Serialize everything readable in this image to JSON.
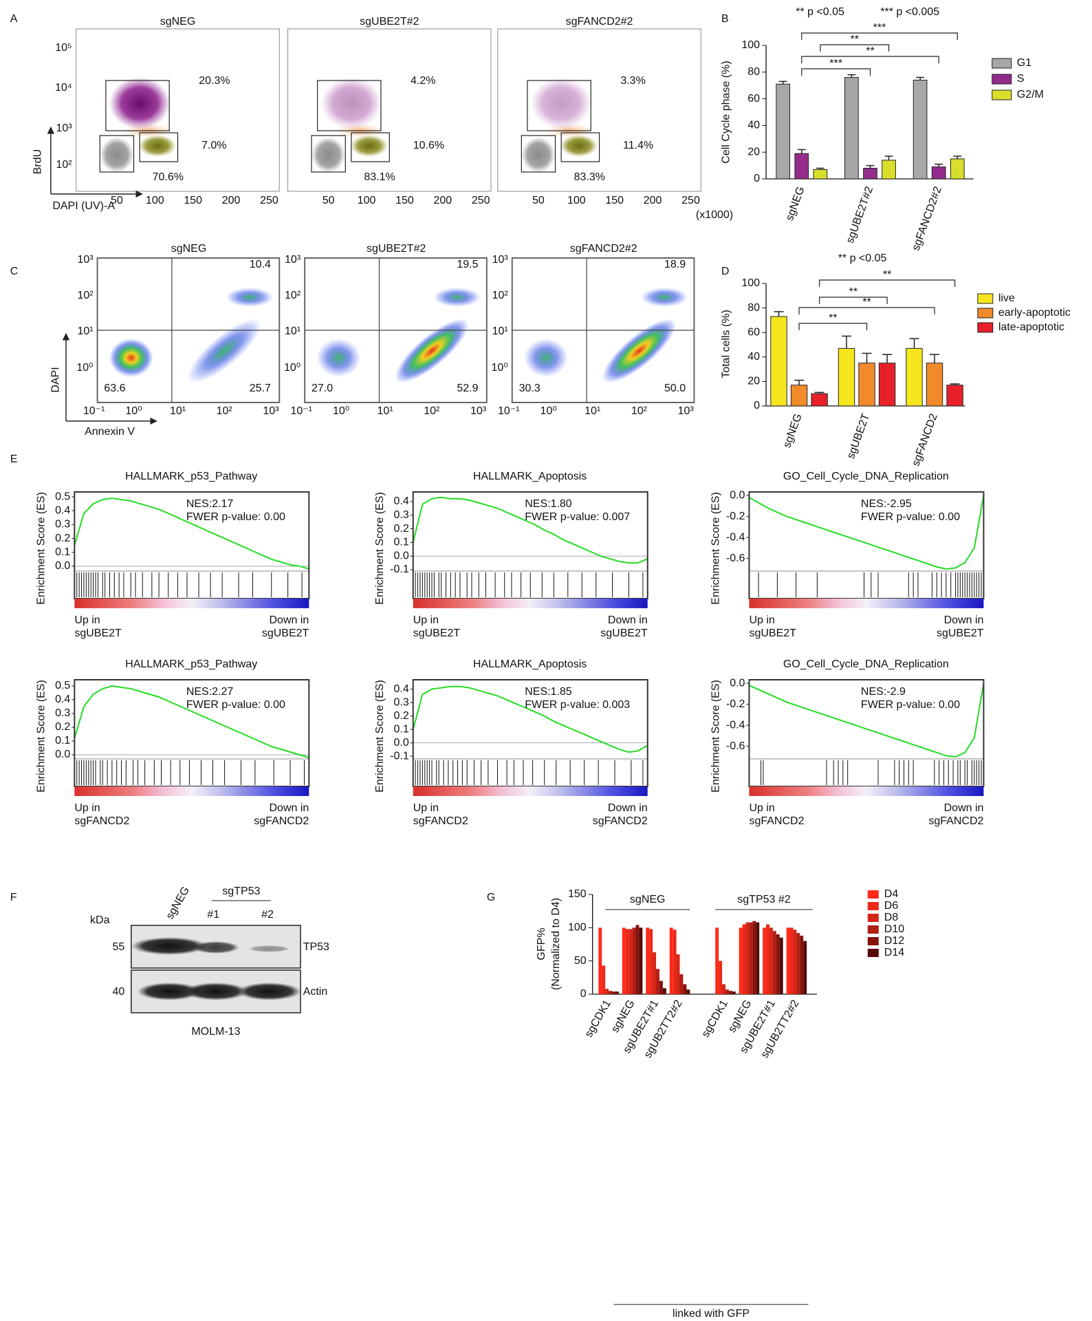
{
  "panel_labels": [
    "A",
    "B",
    "C",
    "D",
    "E",
    "F",
    "G"
  ],
  "cell_cycle_flow": {
    "x_label": "DAPI (UV)-A",
    "y_label": "BrdU",
    "x_unit": "(x1000)",
    "xticks": [
      "50",
      "100",
      "150",
      "200",
      "250"
    ],
    "yticks": [
      "10⁵",
      "10⁴",
      "10³",
      "10²"
    ],
    "panels": [
      {
        "title": "sgNEG",
        "gates": [
          "20.3%",
          "7.0%",
          "70.6%"
        ]
      },
      {
        "title": "sgUBE2T#2",
        "gates": [
          "4.2%",
          "10.6%",
          "83.1%"
        ]
      },
      {
        "title": "sgFANCD2#2",
        "gates": [
          "3.3%",
          "11.4%",
          "83.3%"
        ]
      }
    ]
  },
  "apoptosis_flow": {
    "x_label": "Annexin V",
    "y_label": "DAPI",
    "xticks": [
      "10⁻¹",
      "10⁰",
      "10¹",
      "10²",
      "10³"
    ],
    "yticks": [
      "10³",
      "10²",
      "10¹",
      "10⁰"
    ],
    "panels": [
      {
        "title": "sgNEG",
        "quadrants": [
          "10.4",
          "63.6",
          "25.7"
        ]
      },
      {
        "title": "sgUBE2T#2",
        "quadrants": [
          "19.5",
          "27.0",
          "52.9"
        ]
      },
      {
        "title": "sgFANCD2#2",
        "quadrants": [
          "18.9",
          "30.3",
          "50.0"
        ]
      }
    ]
  },
  "western_blot": {
    "lanes": [
      "sgNEG",
      "#1",
      "#2"
    ],
    "group_label": "sgTP53",
    "unit_label": "kDa",
    "markers": [
      "55",
      "40"
    ],
    "proteins": [
      "TP53",
      "Actin"
    ],
    "cell_line": "MOLM-13"
  },
  "chart_data": [
    {
      "type": "bar",
      "notes": [
        "**  p <0.05",
        "***  p <0.005"
      ],
      "y_label": "Cell Cycle phase (%)",
      "categories": [
        "sgNEG",
        "sgUBE2T#2",
        "sgFANCD2#2"
      ],
      "series": [
        {
          "name": "G1",
          "color": "#a7a7a9",
          "values": [
            71,
            76,
            74
          ],
          "errors": [
            2,
            2,
            2
          ]
        },
        {
          "name": "S",
          "color": "#952b8c",
          "values": [
            19,
            8,
            9
          ],
          "errors": [
            3,
            2,
            2
          ]
        },
        {
          "name": "G2/M",
          "color": "#d9de2a",
          "values": [
            7,
            14,
            15
          ],
          "errors": [
            1,
            3,
            2
          ]
        }
      ],
      "ylim": [
        0,
        100
      ],
      "yticks": [
        0,
        20,
        40,
        60,
        80,
        100
      ],
      "significance": [
        "***",
        "**",
        "**",
        "***"
      ]
    },
    {
      "type": "bar",
      "notes": [
        "**  p <0.05"
      ],
      "y_label": "Total cells (%)",
      "categories": [
        "sgNEG",
        "sgUBE2T",
        "sgFANCD2"
      ],
      "series": [
        {
          "name": "live",
          "color": "#f5e61e",
          "values": [
            73,
            47,
            47
          ],
          "errors": [
            4,
            10,
            8
          ]
        },
        {
          "name": "early-apoptotic",
          "color": "#f08a2a",
          "values": [
            17,
            35,
            35
          ],
          "errors": [
            4,
            8,
            7
          ]
        },
        {
          "name": "late-apoptotic",
          "color": "#e8202a",
          "values": [
            10,
            35,
            17
          ],
          "errors": [
            1,
            7,
            1
          ]
        }
      ],
      "ylim": [
        0,
        100
      ],
      "yticks": [
        0,
        20,
        40,
        60,
        80,
        100
      ],
      "significance": [
        "**",
        "**",
        "**",
        "**"
      ]
    },
    {
      "type": "line",
      "title": "HALLMARK_p53_Pathway",
      "y_label": "Enrichment Score (ES)",
      "color": "#22dd22",
      "annotations": [
        "NES:2.17",
        "FWER p-value: 0.00"
      ],
      "left_label": [
        "Up in",
        "sgUBE2T"
      ],
      "right_label": [
        "Down in",
        "sgUBE2T"
      ],
      "values": [
        0.15,
        0.38,
        0.45,
        0.48,
        0.49,
        0.48,
        0.47,
        0.45,
        0.43,
        0.41,
        0.38,
        0.35,
        0.32,
        0.29,
        0.26,
        0.23,
        0.2,
        0.17,
        0.14,
        0.11,
        0.08,
        0.05,
        0.03,
        0.01,
        0.0,
        -0.02
      ],
      "hits": [
        1,
        2,
        3,
        4,
        5,
        6,
        7,
        8,
        9,
        10,
        12,
        13,
        15,
        17,
        19,
        21,
        24,
        26,
        29,
        33,
        36,
        40,
        44,
        48,
        53,
        58,
        63,
        70,
        76,
        84,
        91,
        97
      ],
      "xlim": [
        0,
        100
      ],
      "ylim": [
        -0.035,
        0.535
      ],
      "yticks": [
        {
          "value": 0,
          "label": "0.0"
        },
        0.1,
        0.2,
        0.3,
        0.4,
        0.5
      ],
      "zero_line": true
    },
    {
      "type": "line",
      "title": "HALLMARK_Apoptosis",
      "y_label": "Enrichment Score (ES)",
      "color": "#22dd22",
      "annotations": [
        "NES:1.80",
        "FWER p-value: 0.007"
      ],
      "left_label": [
        "Up in",
        "sgUBE2T"
      ],
      "right_label": [
        "Down in",
        "sgUBE2T"
      ],
      "values": [
        0.1,
        0.38,
        0.42,
        0.43,
        0.42,
        0.42,
        0.41,
        0.39,
        0.37,
        0.35,
        0.32,
        0.29,
        0.26,
        0.23,
        0.19,
        0.16,
        0.12,
        0.09,
        0.06,
        0.03,
        0.0,
        -0.02,
        -0.04,
        -0.05,
        -0.05,
        -0.02
      ],
      "hits": [
        1,
        2,
        3,
        4,
        5,
        6,
        7,
        8,
        9,
        11,
        12,
        14,
        16,
        18,
        20,
        23,
        25,
        28,
        31,
        35,
        39,
        42,
        46,
        50,
        55,
        60,
        66,
        72,
        78,
        85,
        92,
        98
      ],
      "xlim": [
        0,
        100
      ],
      "ylim": [
        -0.11,
        0.47
      ],
      "yticks": [
        -0.1,
        {
          "value": 0,
          "label": "0.0"
        },
        0.1,
        0.2,
        0.3,
        0.4
      ],
      "zero_line": true
    },
    {
      "type": "line",
      "title": "GO_Cell_Cycle_DNA_Replication",
      "y_label": "Enrichment Score (ES)",
      "color": "#22dd22",
      "annotations": [
        "NES:-2.95",
        "FWER p-value: 0.00"
      ],
      "left_label": [
        "Up in",
        "sgUBE2T"
      ],
      "right_label": [
        "Down in",
        "sgUBE2T"
      ],
      "values": [
        -0.02,
        -0.07,
        -0.12,
        -0.16,
        -0.2,
        -0.23,
        -0.26,
        -0.29,
        -0.32,
        -0.35,
        -0.38,
        -0.41,
        -0.44,
        -0.47,
        -0.5,
        -0.53,
        -0.56,
        -0.59,
        -0.62,
        -0.65,
        -0.68,
        -0.7,
        -0.69,
        -0.64,
        -0.5,
        0.0
      ],
      "hits": [
        4,
        12,
        20,
        29,
        49,
        52,
        55,
        68,
        70,
        72,
        78,
        80,
        82,
        84,
        86,
        88,
        89,
        90,
        91,
        92,
        93,
        94,
        95,
        96,
        97,
        98,
        99
      ],
      "xlim": [
        0,
        100
      ],
      "ylim": [
        -0.72,
        0.033
      ],
      "yticks": [
        {
          "value": 0,
          "label": "0.0"
        },
        -0.2,
        -0.4,
        -0.6
      ],
      "zero_line": false
    },
    {
      "type": "line",
      "title": "HALLMARK_p53_Pathway",
      "y_label": "Enrichment Score (ES)",
      "color": "#22dd22",
      "annotations": [
        "NES:2.27",
        "FWER p-value: 0.00"
      ],
      "left_label": [
        "Up in",
        "sgFANCD2"
      ],
      "right_label": [
        "Down in",
        "sgFANCD2"
      ],
      "values": [
        0.12,
        0.35,
        0.44,
        0.48,
        0.5,
        0.49,
        0.48,
        0.46,
        0.44,
        0.42,
        0.39,
        0.36,
        0.33,
        0.3,
        0.27,
        0.24,
        0.21,
        0.18,
        0.15,
        0.12,
        0.09,
        0.06,
        0.04,
        0.02,
        0.0,
        -0.02
      ],
      "hits": [
        1,
        2,
        3,
        4,
        5,
        6,
        7,
        8,
        9,
        11,
        12,
        14,
        16,
        18,
        20,
        22,
        25,
        27,
        30,
        34,
        37,
        41,
        45,
        49,
        54,
        59,
        64,
        71,
        77,
        85,
        92,
        98
      ],
      "xlim": [
        0,
        100
      ],
      "ylim": [
        -0.03,
        0.545
      ],
      "yticks": [
        {
          "value": 0,
          "label": "0.0"
        },
        0.1,
        0.2,
        0.3,
        0.4,
        0.5
      ],
      "zero_line": true
    },
    {
      "type": "line",
      "title": "HALLMARK_Apoptosis",
      "y_label": "Enrichment Score (ES)",
      "color": "#22dd22",
      "annotations": [
        "NES:1.85",
        "FWER p-value: 0.003"
      ],
      "left_label": [
        "Up in",
        "sgFANCD2"
      ],
      "right_label": [
        "Down in",
        "sgFANCD2"
      ],
      "values": [
        0.1,
        0.36,
        0.4,
        0.41,
        0.42,
        0.42,
        0.41,
        0.39,
        0.37,
        0.35,
        0.32,
        0.29,
        0.26,
        0.23,
        0.2,
        0.16,
        0.13,
        0.1,
        0.07,
        0.04,
        0.01,
        -0.02,
        -0.05,
        -0.07,
        -0.06,
        -0.02
      ],
      "hits": [
        1,
        2,
        3,
        4,
        5,
        6,
        7,
        8,
        10,
        11,
        13,
        15,
        17,
        19,
        21,
        23,
        26,
        29,
        32,
        36,
        40,
        43,
        47,
        51,
        56,
        61,
        67,
        73,
        79,
        86,
        93,
        98
      ],
      "xlim": [
        0,
        100
      ],
      "ylim": [
        -0.12,
        0.47
      ],
      "yticks": [
        -0.1,
        {
          "value": 0,
          "label": "0.0"
        },
        0.1,
        0.2,
        0.3,
        0.4
      ],
      "zero_line": true
    },
    {
      "type": "line",
      "title": "GO_Cell_Cycle_DNA_Replication",
      "y_label": "Enrichment Score (ES)",
      "color": "#22dd22",
      "annotations": [
        "NES:-2.9",
        "FWER p-value: 0.00"
      ],
      "left_label": [
        "Up in",
        "sgFANCD2"
      ],
      "right_label": [
        "Down in",
        "sgFANCD2"
      ],
      "values": [
        -0.02,
        -0.06,
        -0.1,
        -0.14,
        -0.18,
        -0.21,
        -0.24,
        -0.27,
        -0.3,
        -0.33,
        -0.36,
        -0.39,
        -0.42,
        -0.45,
        -0.48,
        -0.51,
        -0.54,
        -0.57,
        -0.6,
        -0.63,
        -0.66,
        -0.69,
        -0.7,
        -0.66,
        -0.52,
        0.0
      ],
      "hits": [
        5,
        6,
        33,
        36,
        38,
        40,
        42,
        55,
        62,
        64,
        66,
        68,
        70,
        79,
        81,
        83,
        85,
        87,
        89,
        90,
        92,
        93,
        95,
        96,
        97,
        98,
        99
      ],
      "xlim": [
        0,
        100
      ],
      "ylim": [
        -0.72,
        0.033
      ],
      "yticks": [
        {
          "value": 0,
          "label": "0.0"
        },
        -0.2,
        -0.4,
        -0.6
      ],
      "zero_line": false
    },
    {
      "type": "bar",
      "y_label": [
        "GFP%",
        "(Normalized to D4)"
      ],
      "categories": [
        "sgCDK1",
        "sgNEG",
        "sgUBE2T#1",
        "sgUB2TT2#2",
        "sgCDK1",
        "sgNEG",
        "sgUBE2T#1",
        "sgUB2TT2#2"
      ],
      "groups": [
        "sgNEG",
        "sgTP53 #2"
      ],
      "footer": "linked with GFP",
      "series": [
        {
          "name": "D4",
          "color": "#ff2a1a",
          "values": [
            100,
            100,
            100,
            100,
            100,
            100,
            100,
            100
          ]
        },
        {
          "name": "D6",
          "color": "#ec2818",
          "values": [
            43,
            98,
            98,
            97,
            50,
            105,
            105,
            100
          ]
        },
        {
          "name": "D8",
          "color": "#d42616",
          "values": [
            8,
            98,
            63,
            60,
            15,
            108,
            100,
            97
          ]
        },
        {
          "name": "D10",
          "color": "#b01e14",
          "values": [
            5,
            100,
            38,
            30,
            7,
            108,
            95,
            92
          ]
        },
        {
          "name": "D12",
          "color": "#86140e",
          "values": [
            4,
            104,
            20,
            15,
            5,
            110,
            90,
            88
          ]
        },
        {
          "name": "D14",
          "color": "#560a06",
          "values": [
            4,
            100,
            9,
            7,
            4,
            108,
            85,
            80
          ]
        }
      ],
      "ylim": [
        0,
        150
      ],
      "yticks": [
        0,
        50,
        100,
        150
      ]
    }
  ]
}
